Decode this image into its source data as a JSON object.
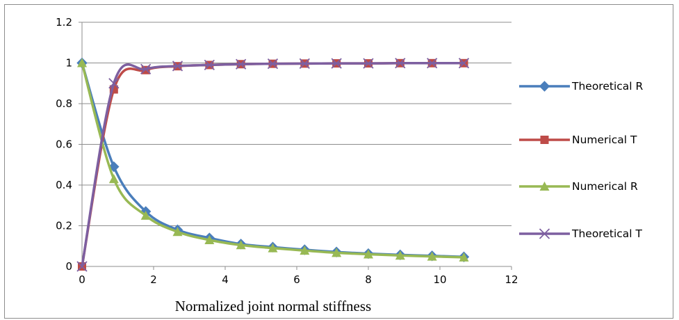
{
  "chart_data": {
    "type": "line",
    "title": "",
    "xlabel": "Normalized joint normal stiffness",
    "ylabel": "",
    "xlim": [
      0,
      12
    ],
    "ylim": [
      0,
      1.2
    ],
    "x_ticks": [
      "0",
      "2",
      "4",
      "6",
      "8",
      "10",
      "12"
    ],
    "y_ticks": [
      "0",
      "0.2",
      "0.4",
      "0.6",
      "0.8",
      "1",
      "1.2"
    ],
    "grid": "horizontal",
    "legend_position": "right",
    "x": [
      0,
      0.89,
      1.78,
      2.67,
      3.56,
      4.44,
      5.33,
      6.22,
      7.11,
      8.0,
      8.89,
      9.78,
      10.67
    ],
    "series": [
      {
        "name": "Theoretical R",
        "color": "#4a7ebb",
        "marker": "diamond",
        "values": [
          1.0,
          0.49,
          0.27,
          0.18,
          0.14,
          0.11,
          0.095,
          0.082,
          0.071,
          0.063,
          0.057,
          0.052,
          0.047
        ]
      },
      {
        "name": "Numerical T",
        "color": "#be4b48",
        "marker": "square",
        "values": [
          0.0,
          0.87,
          0.965,
          0.984,
          0.99,
          0.994,
          0.996,
          0.997,
          0.998,
          0.998,
          0.999,
          0.999,
          0.999
        ]
      },
      {
        "name": "Numerical R",
        "color": "#98b954",
        "marker": "triangle",
        "values": [
          1.0,
          0.43,
          0.25,
          0.17,
          0.13,
          0.105,
          0.09,
          0.078,
          0.067,
          0.06,
          0.054,
          0.049,
          0.045
        ]
      },
      {
        "name": "Theoretical T",
        "color": "#7d5fa0",
        "marker": "x",
        "values": [
          0.0,
          0.9,
          0.97,
          0.985,
          0.99,
          0.994,
          0.996,
          0.997,
          0.998,
          0.998,
          0.999,
          0.999,
          0.999
        ]
      }
    ]
  }
}
